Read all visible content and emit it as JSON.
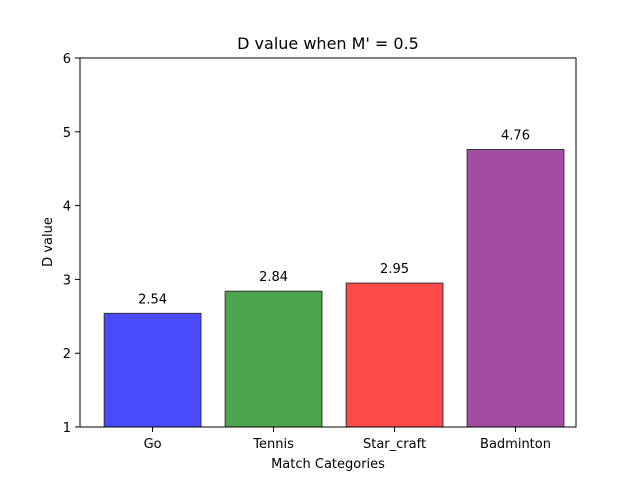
{
  "chart_data": {
    "type": "bar",
    "title": "D value when M' = 0.5",
    "xlabel": "Match Categories",
    "ylabel": "D value",
    "categories": [
      "Go",
      "Tennis",
      "Star_craft",
      "Badminton"
    ],
    "values": [
      2.54,
      2.84,
      2.95,
      4.76
    ],
    "value_labels": [
      "2.54",
      "2.84",
      "2.95",
      "4.76"
    ],
    "colors": [
      "#4a4aff",
      "#4ea54e",
      "#ff4a4a",
      "#a34ca3"
    ],
    "edge_color": "#333333",
    "ylim": [
      1,
      6
    ],
    "yticks": [
      "1",
      "2",
      "3",
      "4",
      "5",
      "6"
    ],
    "grid": false,
    "legend": "none"
  }
}
